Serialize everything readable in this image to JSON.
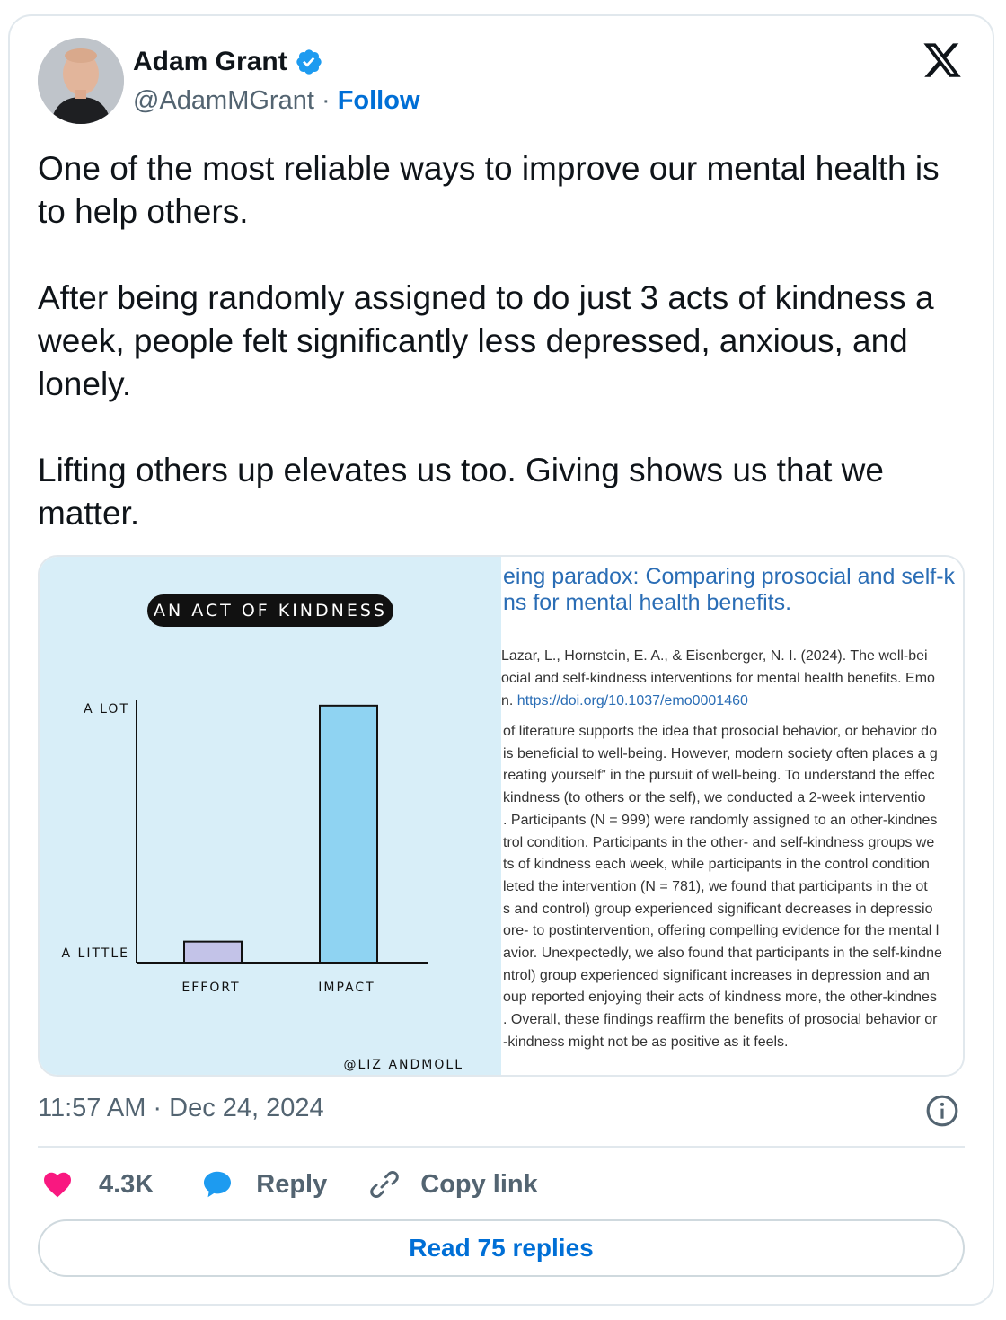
{
  "author": {
    "name": "Adam Grant",
    "handle": "@AdamMGrant",
    "separator": "·",
    "follow_label": "Follow"
  },
  "tweet": {
    "paragraphs": [
      "One of the most reliable ways to improve our mental health is to help others.",
      "After being randomly assigned to do just 3 acts of kindness a week, people felt significantly less depressed, anxious, and lonely.",
      "Lifting others up elevates us too. Giving shows us that we matter."
    ]
  },
  "comic": {
    "title": "AN ACT OF KINDNESS",
    "credit": "@LIZ ANDMOLL",
    "colors": {
      "background": "#d8eef8",
      "effort_bar": "#c3c3e8",
      "impact_bar": "#8fd3f2"
    }
  },
  "chart_data": {
    "type": "bar",
    "title": "AN ACT OF KINDNESS",
    "categories": [
      "EFFORT",
      "IMPACT"
    ],
    "values": [
      0.08,
      0.98
    ],
    "ytick_labels": [
      "A LITTLE",
      "A LOT"
    ],
    "ylim": [
      0,
      1
    ],
    "grid": false
  },
  "paper": {
    "title_lines": [
      "eing paradox: Comparing prosocial and self-k",
      "ns for mental health benefits."
    ],
    "citation_lines": [
      "Lazar, L., Hornstein, E. A., & Eisenberger, N. I. (2024). The well-bei",
      "ocial and self-kindness interventions for mental health benefits. Emo",
      "n. "
    ],
    "doi": "https://doi.org/10.1037/emo0001460",
    "abstract_lines": [
      "of literature supports the idea that prosocial behavior, or behavior do",
      "is beneficial to well-being. However, modern society often places a g",
      "reating yourself” in the pursuit of well-being. To understand the effec",
      "kindness (to others or the self), we conducted a 2-week interventio",
      ". Participants (N = 999) were randomly assigned to an other-kindnes",
      "trol condition. Participants in the other- and self-kindness groups we",
      "ts of kindness each week, while participants in the control condition",
      "leted the intervention (N = 781), we found that participants in the ot",
      "s and control) group experienced significant decreases in depressio",
      "ore- to postintervention, offering compelling evidence for the mental l",
      "avior. Unexpectedly, we also found that participants in the self-kindne",
      "ntrol) group experienced significant increases in depression and an",
      "oup reported enjoying their acts of kindness more, the other-kindnes",
      ". Overall, these findings reaffirm the benefits of prosocial behavior or",
      "-kindness might not be as positive as it feels."
    ]
  },
  "meta": {
    "timestamp": "11:57 AM · Dec 24, 2024"
  },
  "actions": {
    "likes": "4.3K",
    "reply_label": "Reply",
    "copy_label": "Copy link",
    "read_replies_label": "Read 75 replies"
  },
  "colors": {
    "accent": "#006fd6",
    "heart": "#f91880",
    "reply_icon": "#1d9bf0",
    "verified": "#1d9bf0",
    "secondary_text": "#536471"
  },
  "icons": [
    "verified-badge-icon",
    "x-logo-icon",
    "info-icon",
    "heart-icon",
    "reply-bubble-icon",
    "link-icon"
  ]
}
